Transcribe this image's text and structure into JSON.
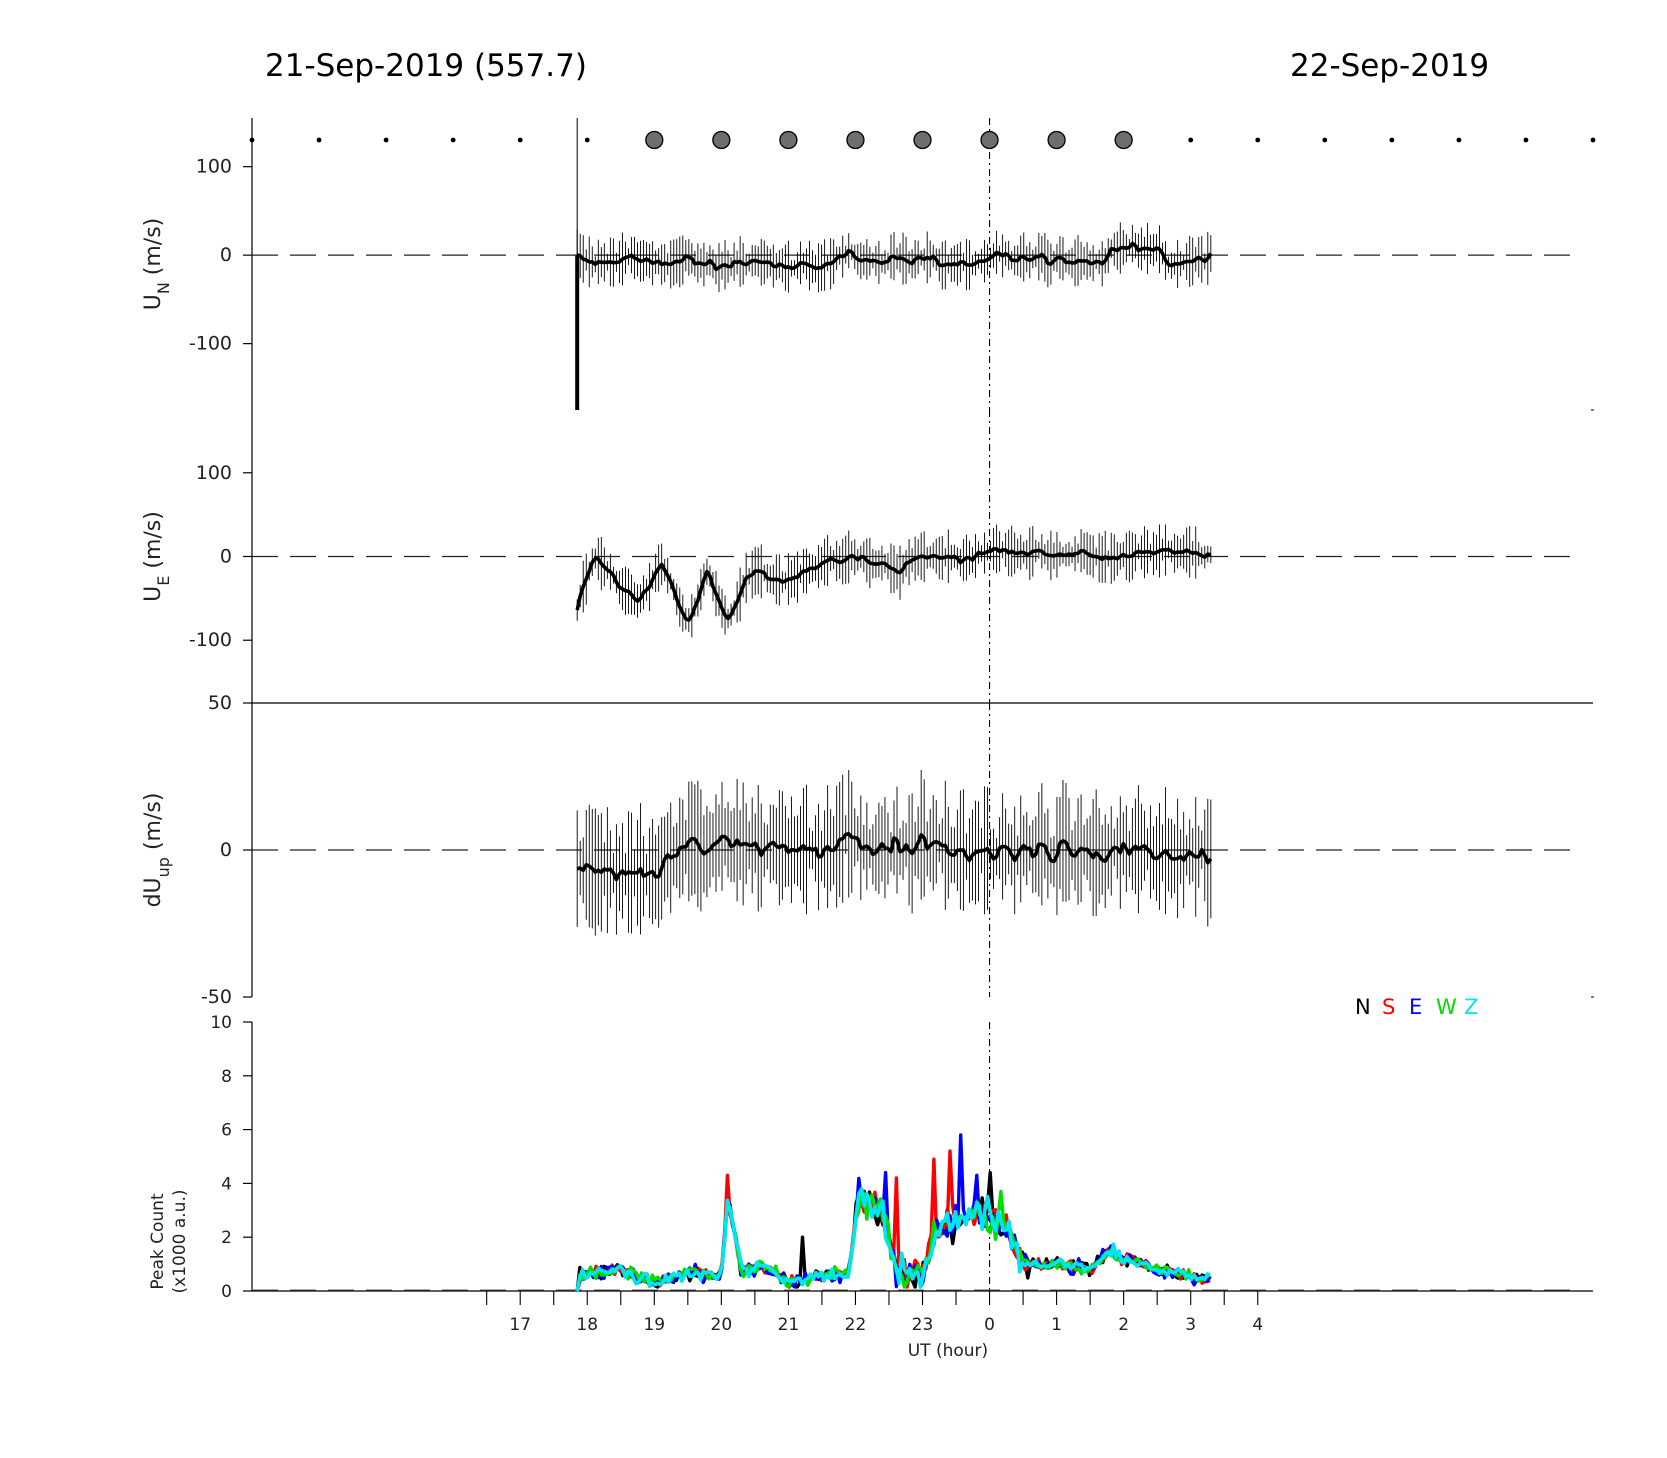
{
  "header": {
    "left_title": "21-Sep-2019 (557.7)",
    "right_title": "22-Sep-2019"
  },
  "chart_data": [
    {
      "type": "line",
      "panel": "UN",
      "ylabel_main": "U",
      "ylabel_sub": "N",
      "ylabel_unit": " (m/s)",
      "ylim": [
        -175,
        155
      ],
      "yticks": [
        100,
        0,
        -100
      ],
      "xlim": [
        13,
        33
      ],
      "zero_line": "dashed",
      "x_start": 17.85,
      "x_end": 27.3,
      "series": [
        {
          "color": "#000000",
          "errorbar_scale": 24
        }
      ],
      "initial_spike": -175,
      "moon_markers_hours": [
        13,
        14,
        15,
        16,
        17,
        18,
        19,
        20,
        21,
        22,
        23,
        24,
        25,
        26,
        27,
        28,
        29,
        30,
        31,
        32,
        33
      ],
      "moon_large_hours": [
        19,
        20,
        21,
        22,
        23,
        24,
        25,
        26
      ]
    },
    {
      "type": "line",
      "panel": "UE",
      "ylabel_main": "U",
      "ylabel_sub": "E",
      "ylabel_unit": " (m/s)",
      "ylim": [
        -175,
        175
      ],
      "yticks": [
        100,
        0,
        -100
      ],
      "xlim": [
        13,
        33
      ],
      "zero_line": "dashed",
      "x_start": 17.85,
      "x_end": 27.3,
      "series": [
        {
          "color": "#000000",
          "errorbar_scale": 26
        }
      ],
      "profile": [
        [
          17.85,
          -62
        ],
        [
          18.1,
          -5
        ],
        [
          18.5,
          -35
        ],
        [
          18.8,
          -50
        ],
        [
          19.1,
          -5
        ],
        [
          19.5,
          -80
        ],
        [
          19.8,
          -18
        ],
        [
          20.1,
          -80
        ],
        [
          20.4,
          -20
        ],
        [
          21.0,
          -30
        ],
        [
          21.5,
          -10
        ],
        [
          22.0,
          0
        ],
        [
          22.6,
          -20
        ],
        [
          23.0,
          0
        ],
        [
          23.7,
          -5
        ],
        [
          24.0,
          8
        ],
        [
          25.0,
          2
        ],
        [
          26.0,
          5
        ],
        [
          27.0,
          15
        ],
        [
          27.3,
          2
        ]
      ]
    },
    {
      "type": "line",
      "panel": "dUup",
      "ylabel_main": "dU",
      "ylabel_sub": "up",
      "ylabel_unit": " (m/s)",
      "ylim": [
        -50,
        50
      ],
      "yticks": [
        50,
        0,
        -50
      ],
      "xlim": [
        13,
        33
      ],
      "zero_line": "dashed",
      "x_start": 17.85,
      "x_end": 27.3,
      "series": [
        {
          "color": "#000000",
          "errorbar_scale": 18
        }
      ]
    },
    {
      "type": "line",
      "panel": "peak_count",
      "ylabel_line1": "Peak Count",
      "ylabel_line2": "(x1000 a.u.)",
      "ylim": [
        0,
        10
      ],
      "yticks": [
        0,
        2,
        4,
        6,
        8,
        10
      ],
      "xlim": [
        13,
        33
      ],
      "xlabel": "UT (hour)",
      "xtick_hours": [
        17,
        18,
        19,
        20,
        21,
        22,
        23,
        24,
        25,
        26,
        27,
        28
      ],
      "xtick_labels": [
        "17",
        "18",
        "19",
        "20",
        "21",
        "22",
        "23",
        "0",
        "1",
        "2",
        "3",
        "4"
      ],
      "legend": {
        "placement": "top-right",
        "entries": [
          {
            "label": "N",
            "color": "#000000"
          },
          {
            "label": "S",
            "color": "#ff0000"
          },
          {
            "label": "E",
            "color": "#0000ff"
          },
          {
            "label": "W",
            "color": "#00dd00"
          },
          {
            "label": "Z",
            "color": "#00e5ee"
          }
        ]
      },
      "baseline_profile": [
        [
          17.85,
          0.6
        ],
        [
          18.5,
          0.8
        ],
        [
          19.0,
          0.3
        ],
        [
          19.5,
          0.7
        ],
        [
          20.0,
          0.5
        ],
        [
          20.1,
          3.5
        ],
        [
          20.3,
          0.7
        ],
        [
          20.6,
          1.0
        ],
        [
          21.0,
          0.3
        ],
        [
          21.5,
          0.6
        ],
        [
          21.9,
          0.6
        ],
        [
          22.05,
          3.6
        ],
        [
          22.4,
          3.0
        ],
        [
          22.6,
          0.8
        ],
        [
          23.0,
          0.6
        ],
        [
          23.2,
          2.2
        ],
        [
          23.5,
          2.6
        ],
        [
          23.8,
          3.0
        ],
        [
          24.0,
          2.8
        ],
        [
          24.2,
          2.4
        ],
        [
          24.5,
          1.0
        ],
        [
          25.0,
          1.0
        ],
        [
          25.5,
          0.8
        ],
        [
          25.8,
          1.5
        ],
        [
          26.0,
          1.2
        ],
        [
          26.5,
          0.8
        ],
        [
          27.0,
          0.5
        ],
        [
          27.3,
          0.5
        ]
      ],
      "spikes": [
        {
          "hour": 20.1,
          "value": 4.3,
          "color": "#ff0000"
        },
        {
          "hour": 21.2,
          "value": 2.0,
          "color": "#000000"
        },
        {
          "hour": 22.45,
          "value": 4.4,
          "color": "#0000ff"
        },
        {
          "hour": 22.6,
          "value": 4.2,
          "color": "#ff0000"
        },
        {
          "hour": 23.15,
          "value": 4.9,
          "color": "#ff0000"
        },
        {
          "hour": 23.4,
          "value": 5.2,
          "color": "#ff0000"
        },
        {
          "hour": 23.55,
          "value": 5.8,
          "color": "#0000ff"
        },
        {
          "hour": 23.8,
          "value": 4.3,
          "color": "#0000ff"
        },
        {
          "hour": 24.15,
          "value": 3.7,
          "color": "#00dd00"
        },
        {
          "hour": 24.0,
          "value": 4.4,
          "color": "#000000"
        }
      ]
    }
  ]
}
